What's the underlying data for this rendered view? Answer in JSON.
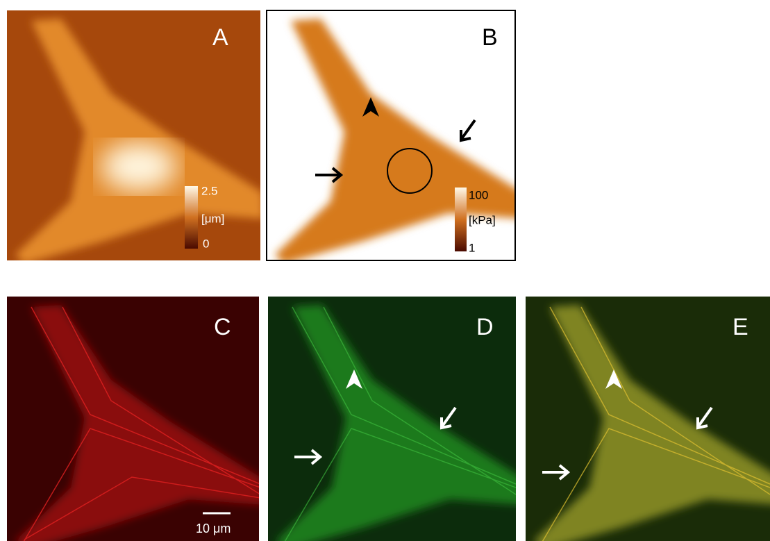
{
  "panels": [
    {
      "label": "A",
      "colorbar": {
        "max": "2.5",
        "unit": "[μm]",
        "min": "0"
      }
    },
    {
      "label": "B",
      "colorbar": {
        "max": "100",
        "unit": "[kPa]",
        "min": "1"
      }
    },
    {
      "label": "C",
      "scale_bar": "10 μm"
    },
    {
      "label": "D"
    },
    {
      "label": "E"
    }
  ]
}
